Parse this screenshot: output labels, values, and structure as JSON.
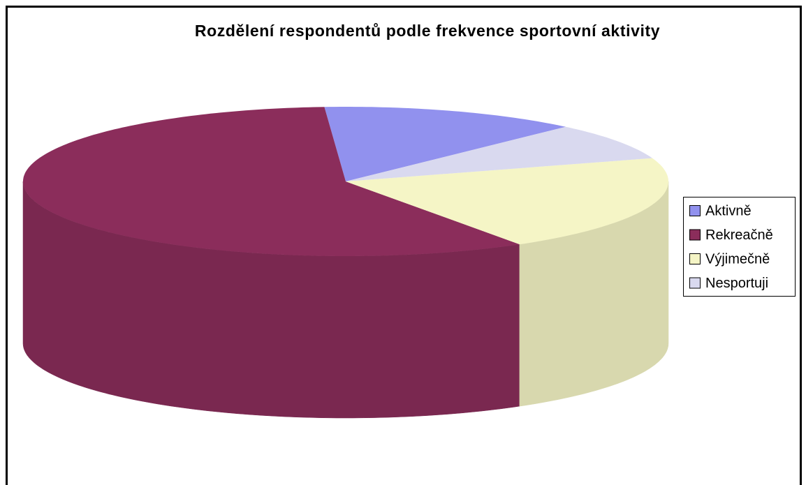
{
  "chart_data": {
    "type": "pie",
    "title": "Rozdělení respondentů podle frekvence sportovní aktivity",
    "categories": [
      "Aktivně",
      "Rekreačně",
      "Výjimečně",
      "Nesportuji"
    ],
    "values": [
      13,
      58,
      21,
      8
    ],
    "colors": [
      "#9191ee",
      "#8b2d5b",
      "#f5f5c6",
      "#d9d9ef"
    ],
    "legend": "right"
  }
}
